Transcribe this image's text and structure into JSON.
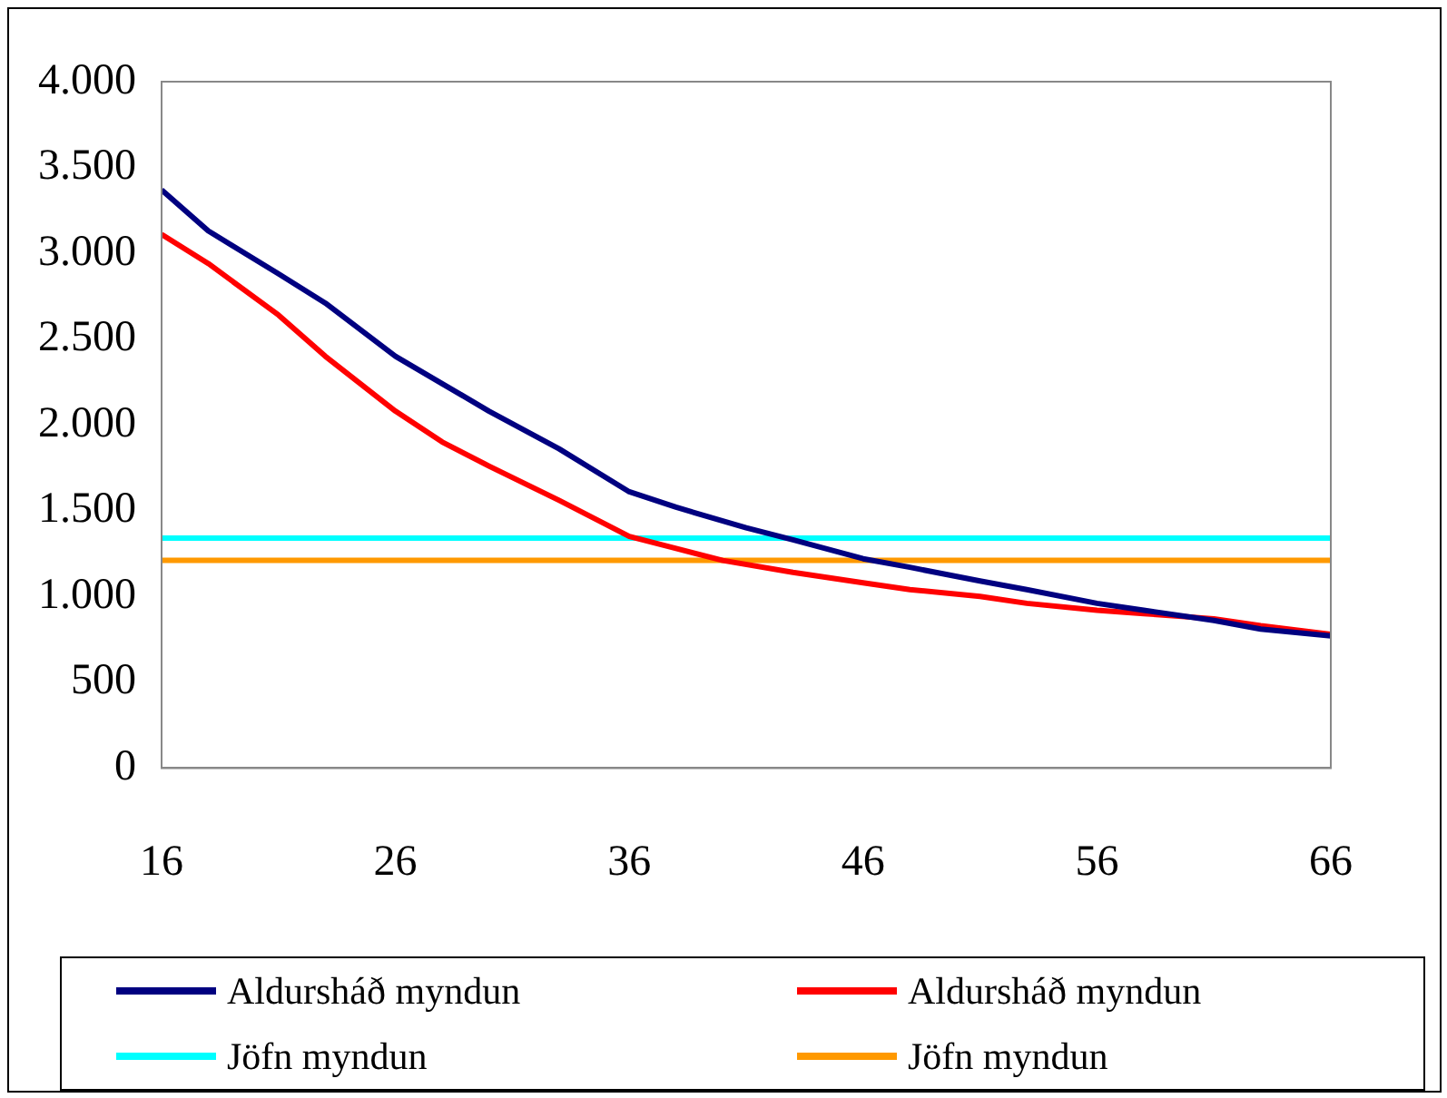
{
  "chart_data": {
    "type": "line",
    "legend": "bottom",
    "grid": false,
    "marker": "none",
    "line_style": "solid",
    "xlim": [
      16,
      66
    ],
    "xticks": [
      16,
      26,
      36,
      46,
      56,
      66
    ],
    "ylim": [
      0,
      4000
    ],
    "yticks": [
      {
        "value": 0,
        "label": "0"
      },
      {
        "value": 500,
        "label": "500"
      },
      {
        "value": 1000,
        "label": "1.000"
      },
      {
        "value": 1500,
        "label": "1.500"
      },
      {
        "value": 2000,
        "label": "2.000"
      },
      {
        "value": 2500,
        "label": "2.500"
      },
      {
        "value": 3000,
        "label": "3.000"
      },
      {
        "value": 3500,
        "label": "3.500"
      },
      {
        "value": 4000,
        "label": "4.000"
      }
    ],
    "series": [
      {
        "name": "Aldursháð myndun",
        "color": "#000080",
        "x": [
          16,
          18,
          21,
          23,
          26,
          28,
          30,
          33,
          36,
          38,
          41,
          43,
          46,
          48,
          51,
          53,
          56,
          58,
          61,
          63,
          66
        ],
        "values": [
          3370,
          3130,
          2880,
          2710,
          2400,
          2240,
          2080,
          1860,
          1610,
          1520,
          1400,
          1330,
          1220,
          1170,
          1090,
          1040,
          960,
          920,
          860,
          810,
          770
        ]
      },
      {
        "name": "Aldursháð myndun",
        "color": "#ff0000",
        "x": [
          16,
          18,
          21,
          23,
          26,
          28,
          30,
          33,
          36,
          38,
          40,
          43,
          46,
          48,
          51,
          53,
          56,
          58,
          61,
          63,
          66
        ],
        "values": [
          3110,
          2940,
          2640,
          2400,
          2080,
          1900,
          1760,
          1560,
          1350,
          1280,
          1210,
          1140,
          1080,
          1040,
          1000,
          960,
          920,
          900,
          870,
          830,
          780
        ]
      },
      {
        "name": "Jöfn myndun",
        "color": "#00ffff",
        "x": [
          16,
          66
        ],
        "values": [
          1340,
          1340
        ]
      },
      {
        "name": "Jöfn myndun",
        "color": "#ff9900",
        "x": [
          16,
          66
        ],
        "values": [
          1210,
          1210
        ]
      }
    ]
  }
}
